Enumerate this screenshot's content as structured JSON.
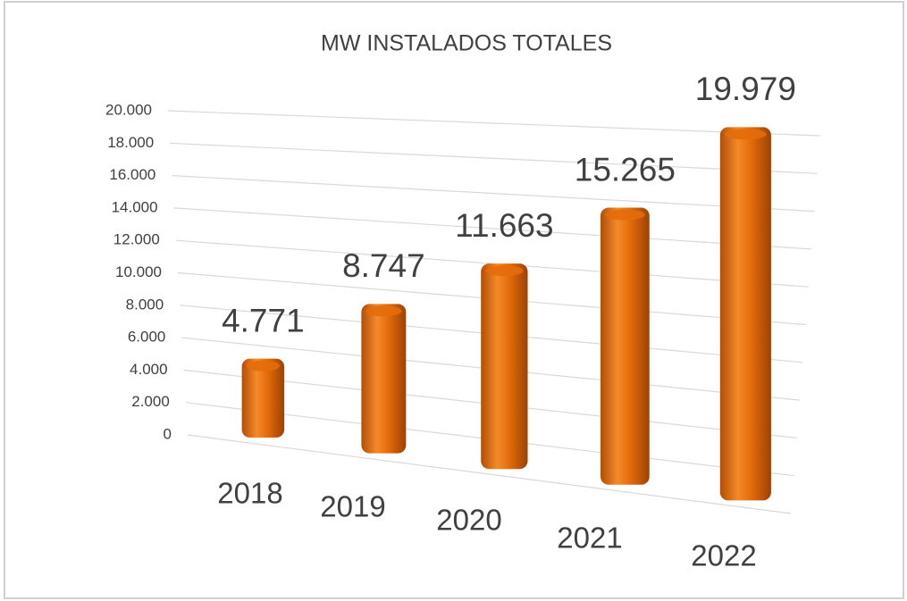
{
  "chart_data": {
    "type": "bar3d",
    "title": "MW INSTALADOS TOTALES",
    "categories": [
      "2018",
      "2019",
      "2020",
      "2021",
      "2022"
    ],
    "values": [
      4771,
      8747,
      11663,
      15265,
      19979
    ],
    "value_labels": [
      "4.771",
      "8.747",
      "11.663",
      "15.265",
      "19.979"
    ],
    "color": "#e46c0a",
    "ylim": [
      0,
      20000
    ],
    "yticks": [
      0,
      {
        "value": 2000,
        "label": "2.000"
      },
      {
        "value": 4000,
        "label": "4.000"
      },
      {
        "value": 6000,
        "label": "6.000"
      },
      {
        "value": 8000,
        "label": "8.000"
      },
      {
        "value": 10000,
        "label": "10.000"
      },
      {
        "value": 12000,
        "label": "12.000"
      },
      {
        "value": 14000,
        "label": "14.000"
      },
      {
        "value": 16000,
        "label": "16.000"
      },
      {
        "value": 18000,
        "label": "18.000"
      },
      {
        "value": 20000,
        "label": "20.000"
      }
    ],
    "grid": true
  }
}
